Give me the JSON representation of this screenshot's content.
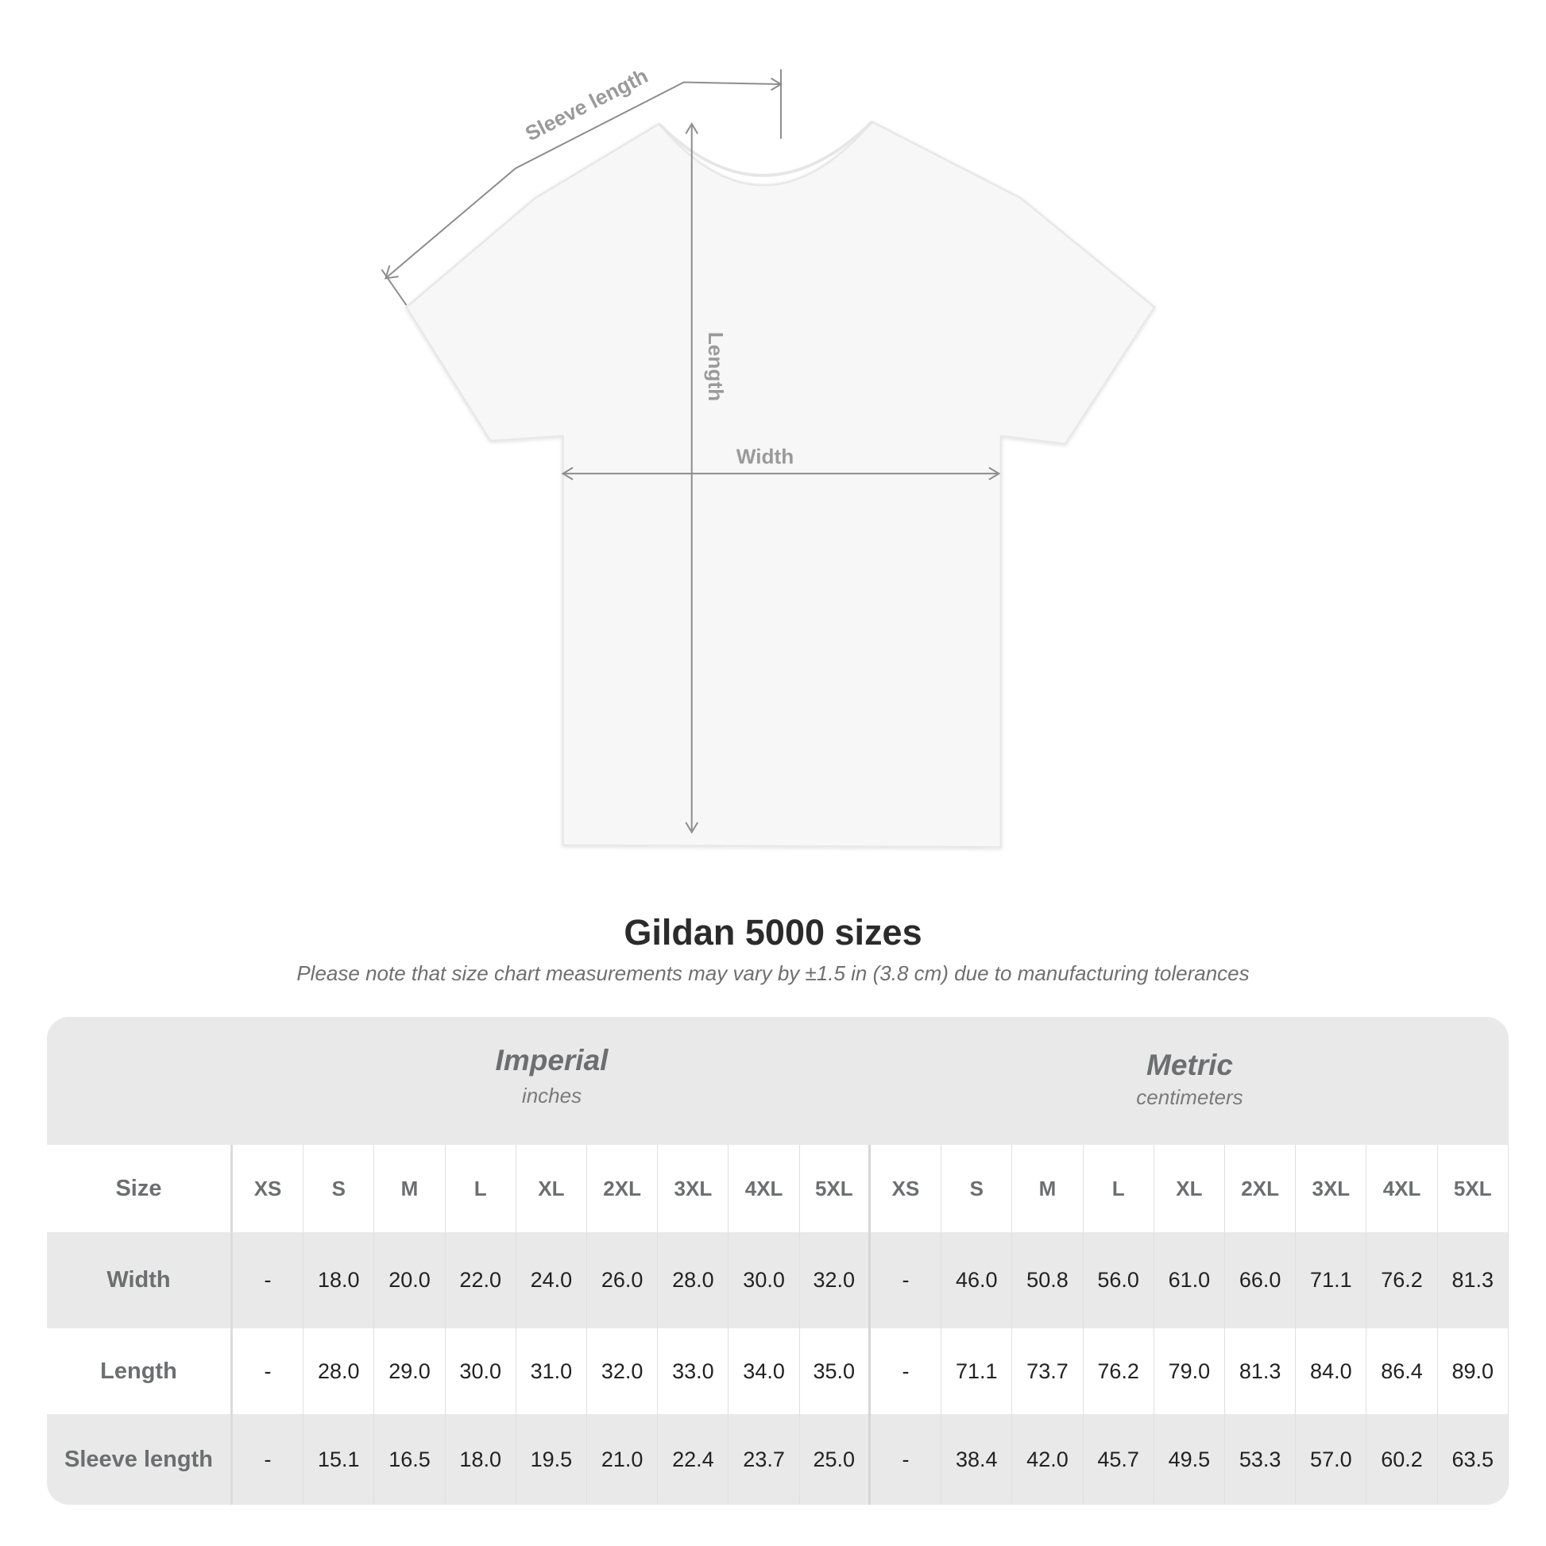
{
  "diagram": {
    "sleeve_label": "Sleeve length",
    "length_label": "Length",
    "width_label": "Width"
  },
  "title": "Gildan 5000 sizes",
  "subtitle": "Please note that size chart measurements may vary by ±1.5 in (3.8 cm) due to manufacturing tolerances",
  "table": {
    "imperial": {
      "name": "Imperial",
      "unit": "inches"
    },
    "metric": {
      "name": "Metric",
      "unit": "centimeters"
    },
    "size_label": "Size",
    "sizes": [
      "XS",
      "S",
      "M",
      "L",
      "XL",
      "2XL",
      "3XL",
      "4XL",
      "5XL",
      "XS",
      "S",
      "M",
      "L",
      "XL",
      "2XL",
      "3XL",
      "4XL",
      "5XL"
    ],
    "rows": [
      {
        "label": "Width",
        "values": [
          "-",
          "18.0",
          "20.0",
          "22.0",
          "24.0",
          "26.0",
          "28.0",
          "30.0",
          "32.0",
          "-",
          "46.0",
          "50.8",
          "56.0",
          "61.0",
          "66.0",
          "71.1",
          "76.2",
          "81.3"
        ]
      },
      {
        "label": "Length",
        "values": [
          "-",
          "28.0",
          "29.0",
          "30.0",
          "31.0",
          "32.0",
          "33.0",
          "34.0",
          "35.0",
          "-",
          "71.1",
          "73.7",
          "76.2",
          "79.0",
          "81.3",
          "84.0",
          "86.4",
          "89.0"
        ]
      },
      {
        "label": "Sleeve length",
        "values": [
          "-",
          "15.1",
          "16.5",
          "18.0",
          "19.5",
          "21.0",
          "22.4",
          "23.7",
          "25.0",
          "-",
          "38.4",
          "42.0",
          "45.7",
          "49.5",
          "53.3",
          "57.0",
          "60.2",
          "63.5"
        ]
      }
    ]
  }
}
